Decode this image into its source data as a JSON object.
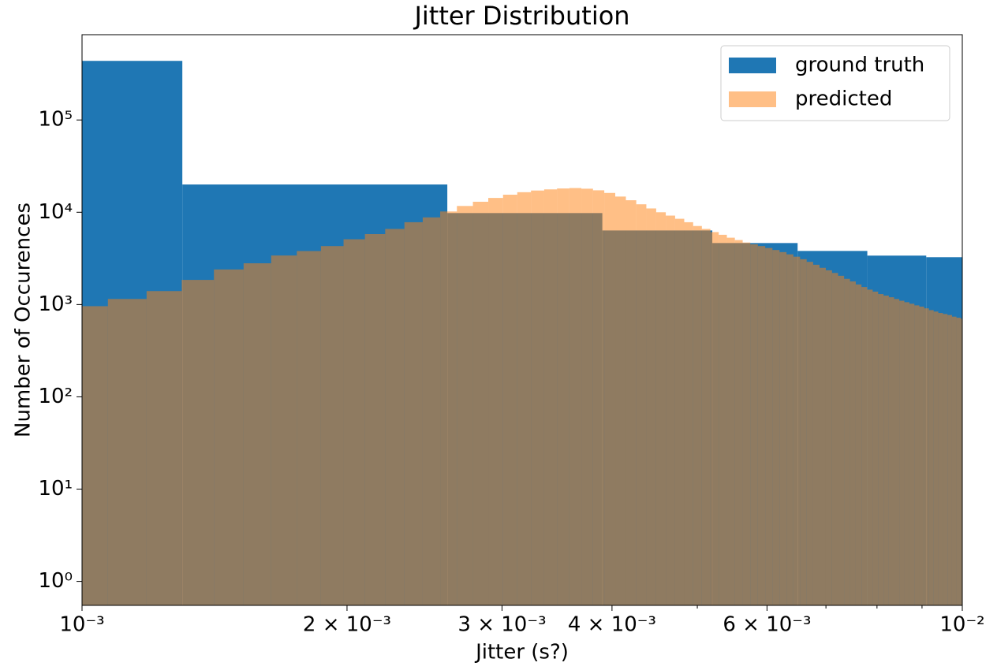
{
  "chart_data": {
    "type": "histogram",
    "title": "Jitter Distribution",
    "xlabel": "Jitter (s?)",
    "ylabel": "Number of Occurences",
    "xscale": "log",
    "yscale": "log",
    "legend": "upper right",
    "xlim": [
      0.001,
      0.01
    ],
    "ylim": [
      0.55,
      840000
    ],
    "xticks": [
      {
        "value": 0.001,
        "label": "10⁻³"
      },
      {
        "value": 0.002,
        "label": "2 × 10⁻³"
      },
      {
        "value": 0.003,
        "label": "3 × 10⁻³"
      },
      {
        "value": 0.004,
        "label": "4 × 10⁻³"
      },
      {
        "value": 0.006,
        "label": "6 × 10⁻³"
      },
      {
        "value": 0.01,
        "label": "10⁻²"
      }
    ],
    "xminor_ticks": [
      0.005,
      0.007,
      0.008,
      0.009
    ],
    "yticks": [
      {
        "value": 1,
        "label": "10⁰"
      },
      {
        "value": 10,
        "label": "10¹"
      },
      {
        "value": 100,
        "label": "10²"
      },
      {
        "value": 1000,
        "label": "10³"
      },
      {
        "value": 10000,
        "label": "10⁴"
      },
      {
        "value": 100000,
        "label": "10⁵"
      }
    ],
    "series": [
      {
        "name": "ground truth",
        "color": "#1f77b4",
        "alpha": 1,
        "bins": [
          0.001,
          0.0013,
          0.0026,
          0.0039,
          0.0052,
          0.0065,
          0.0078,
          0.0091,
          0.01
        ],
        "values": [
          437000,
          20000,
          9800,
          6350,
          4640,
          3810,
          3390,
          3260
        ]
      },
      {
        "name": "predicted",
        "color": "#ff7f0e",
        "alpha": 0.5,
        "bins": [
          0.000956,
          0.00107,
          0.001184,
          0.001298,
          0.001412,
          0.001526,
          0.00164,
          0.001754,
          0.001868,
          0.001982,
          0.002096,
          0.00221,
          0.002324,
          0.002438,
          0.002552,
          0.002666,
          0.00278,
          0.002894,
          0.003008,
          0.003122,
          0.003236,
          0.00335,
          0.003464,
          0.003578,
          0.003692,
          0.003806,
          0.00392,
          0.004034,
          0.004148,
          0.004262,
          0.004376,
          0.00449,
          0.004604,
          0.004718,
          0.004832,
          0.004946,
          0.00506,
          0.005174,
          0.005288,
          0.005402,
          0.005516,
          0.00563,
          0.005744,
          0.005858,
          0.005972,
          0.006086,
          0.0062,
          0.006314,
          0.006428,
          0.006542,
          0.006656,
          0.00677,
          0.006884,
          0.006998,
          0.007112,
          0.007226,
          0.00734,
          0.007454,
          0.007568,
          0.007682,
          0.007796,
          0.00791,
          0.008024,
          0.008138,
          0.008252,
          0.008366,
          0.00848,
          0.008594,
          0.008708,
          0.008822,
          0.008936,
          0.00905,
          0.009164,
          0.009278,
          0.009392,
          0.009506,
          0.00962,
          0.009734,
          0.009848,
          0.009962,
          0.010076
        ],
        "values": [
          960,
          1150,
          1400,
          1850,
          2400,
          2800,
          3400,
          3800,
          4300,
          5100,
          5800,
          6600,
          7800,
          8800,
          10200,
          11700,
          13000,
          14300,
          15500,
          16500,
          17200,
          17700,
          18100,
          18300,
          18000,
          17300,
          16200,
          14800,
          13500,
          12200,
          11000,
          10000,
          9200,
          8500,
          7800,
          7100,
          6600,
          6100,
          5700,
          5300,
          5000,
          4700,
          4500,
          4300,
          4100,
          3900,
          3700,
          3500,
          3300,
          3100,
          2900,
          2700,
          2500,
          2350,
          2200,
          2050,
          1900,
          1780,
          1650,
          1550,
          1450,
          1380,
          1300,
          1250,
          1200,
          1150,
          1100,
          1060,
          1020,
          980,
          950,
          910,
          870,
          840,
          810,
          790,
          770,
          740,
          720,
          700
        ]
      }
    ]
  }
}
